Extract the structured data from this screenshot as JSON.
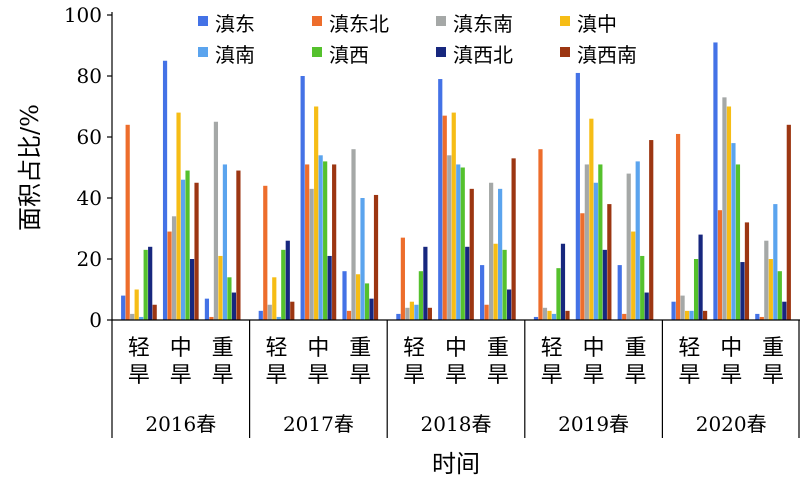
{
  "chart_data": {
    "type": "bar",
    "ylabel": "面积占比/%",
    "xlabel": "时间",
    "ylim": [
      0,
      100
    ],
    "yticks": [
      0,
      20,
      40,
      60,
      80,
      100
    ],
    "grid": false,
    "legend_position": "top",
    "groups": [
      "2016春",
      "2017春",
      "2018春",
      "2019春",
      "2020春"
    ],
    "categories": [
      "轻旱",
      "中旱",
      "重旱"
    ],
    "series": [
      {
        "name": "滇东",
        "color": "#4472E6",
        "values": [
          [
            8,
            85,
            7
          ],
          [
            3,
            80,
            16
          ],
          [
            2,
            79,
            18
          ],
          [
            1,
            81,
            18
          ],
          [
            6,
            91,
            2
          ]
        ]
      },
      {
        "name": "滇东北",
        "color": "#ED6D2C",
        "values": [
          [
            64,
            29,
            1
          ],
          [
            44,
            51,
            3
          ],
          [
            27,
            67,
            5
          ],
          [
            56,
            35,
            2
          ],
          [
            61,
            36,
            1
          ]
        ]
      },
      {
        "name": "滇东南",
        "color": "#A5A8A7",
        "values": [
          [
            2,
            34,
            65
          ],
          [
            5,
            43,
            56
          ],
          [
            4,
            54,
            45
          ],
          [
            4,
            51,
            48
          ],
          [
            8,
            73,
            26
          ]
        ]
      },
      {
        "name": "滇中",
        "color": "#F6BD16",
        "values": [
          [
            10,
            68,
            21
          ],
          [
            14,
            70,
            15
          ],
          [
            6,
            68,
            25
          ],
          [
            3,
            66,
            29
          ],
          [
            3,
            70,
            20
          ]
        ]
      },
      {
        "name": "滇南",
        "color": "#5BA4EE",
        "values": [
          [
            1,
            46,
            51
          ],
          [
            1,
            54,
            40
          ],
          [
            5,
            51,
            43
          ],
          [
            2,
            45,
            52
          ],
          [
            3,
            58,
            38
          ]
        ]
      },
      {
        "name": "滇西",
        "color": "#55C12D",
        "values": [
          [
            23,
            49,
            14
          ],
          [
            23,
            52,
            12
          ],
          [
            16,
            50,
            23
          ],
          [
            17,
            51,
            21
          ],
          [
            20,
            51,
            16
          ]
        ]
      },
      {
        "name": "滇西北",
        "color": "#17277E",
        "values": [
          [
            24,
            20,
            9
          ],
          [
            26,
            21,
            7
          ],
          [
            24,
            24,
            10
          ],
          [
            25,
            23,
            9
          ],
          [
            28,
            19,
            6
          ]
        ]
      },
      {
        "name": "滇西南",
        "color": "#9C3612",
        "values": [
          [
            5,
            45,
            49
          ],
          [
            6,
            51,
            41
          ],
          [
            4,
            43,
            53
          ],
          [
            3,
            38,
            59
          ],
          [
            3,
            32,
            64
          ]
        ]
      }
    ]
  }
}
